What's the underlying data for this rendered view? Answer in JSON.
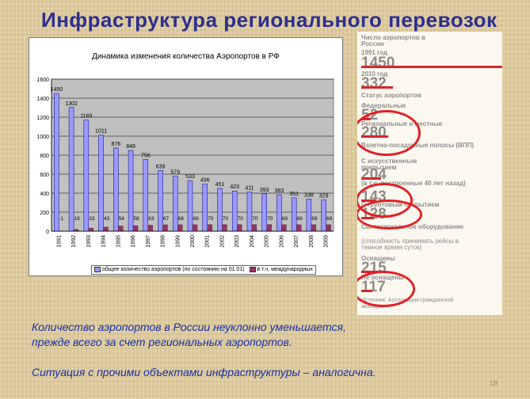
{
  "slide_title": "Инфраструктура регионального перевозок",
  "chart_data": {
    "type": "bar",
    "title": "Динамика изменения количества Аэропортов в РФ",
    "categories": [
      "1991",
      "1992",
      "1993",
      "1994",
      "1995",
      "1996",
      "1997",
      "1998",
      "1999",
      "2000",
      "2001",
      "2002",
      "2003",
      "2004",
      "2005",
      "2006",
      "2007",
      "2008",
      "2009"
    ],
    "series": [
      {
        "name": "общее количество аэропортов (по состоянию на 01.01)",
        "color": "#9999ff",
        "values": [
          1450,
          1302,
          1169,
          1011,
          876,
          849,
          756,
          639,
          579,
          533,
          496,
          451,
          423,
          411,
          393,
          383,
          351,
          338,
          329
        ],
        "labels": [
          "1450",
          "1302",
          "1169",
          "1011",
          "876",
          "849",
          "756",
          "639",
          "579",
          "533",
          "496",
          "451",
          "423",
          "411",
          "393",
          "383",
          "351",
          "338",
          "329"
        ]
      },
      {
        "name": "в т.ч. международных",
        "color": "#993366",
        "values": [
          1,
          19,
          33,
          43,
          54,
          58,
          63,
          67,
          68,
          69,
          70,
          70,
          70,
          70,
          70,
          69,
          69,
          69,
          69
        ],
        "labels": [
          "1",
          "19",
          "33",
          "43",
          "54",
          "58",
          "63",
          "67",
          "68",
          "69",
          "70",
          "70",
          "70",
          "70",
          "70",
          "69",
          "69",
          "69",
          "69"
        ]
      }
    ],
    "ylim": [
      0,
      1600
    ],
    "yticks": [
      "0",
      "200",
      "400",
      "600",
      "800",
      "1000",
      "1200",
      "1400",
      "1600"
    ],
    "grid": true,
    "legend_position": "bottom"
  },
  "infographic": {
    "airports_label": "Число аэропортов в России",
    "year1991_label": "1991 год",
    "year1991_value": "1450",
    "year2010_label": "2010 год",
    "year2010_value": "332",
    "status_label": "Статус аэропортов",
    "federal_label": "Федеральные",
    "federal_value": "52",
    "regional_label": "Региональные и местные",
    "regional_value": "280",
    "runways_label": "Взлетно-посадочные полосы (ВПП)",
    "artificial_label": "С искусственным покрытием",
    "artificial_value": "204",
    "built_label": "(в т.ч. построенные 40 лет назад)",
    "built_value": "143",
    "ground_label": "С грунтовым покрытием",
    "ground_value": "128",
    "lighting_label": "Светосигнальное оборудование",
    "lighting_desc": "(способность принимать рейсы в темное время суток)",
    "equipped_label": "Оснащены",
    "equipped_value": "215",
    "not_equipped_label": "Не оснащены",
    "not_equipped_value": "117",
    "source_label": "Источник: Ассоциация гражданской авиации"
  },
  "bottom_text": {
    "line1": "Количество аэропортов в России неуклонно уменьшается,",
    "line2": "прежде всего за счет региональных аэропортов.",
    "line3": "Ситуация с прочими объектами инфраструктуры – аналогична."
  },
  "page_number": "18"
}
